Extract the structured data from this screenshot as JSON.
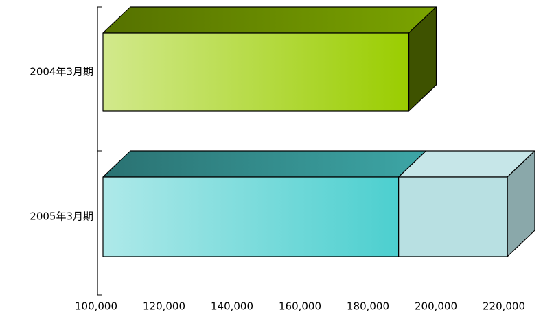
{
  "chart_data": {
    "type": "bar3d_horizontal_stacked",
    "categories": [
      "2004年3月期",
      "2005年3月期"
    ],
    "series": [
      {
        "colors": [
          "#9acd00",
          "#4ccfcf"
        ],
        "values": [
          190000,
          187000
        ]
      },
      {
        "colors": [
          "#b8e0e2",
          "#b8e0e2"
        ],
        "values": [
          null,
          32000
        ]
      }
    ],
    "xlim": [
      100000,
      220000
    ],
    "xticks": [
      {
        "value": 100000,
        "label": "100,000"
      },
      {
        "value": 120000,
        "label": "120,000"
      },
      {
        "value": 140000,
        "label": "140,000"
      },
      {
        "value": 160000,
        "label": "160,000"
      },
      {
        "value": 180000,
        "label": "180,000"
      },
      {
        "value": 200000,
        "label": "200,000"
      },
      {
        "value": 220000,
        "label": "220,000"
      }
    ]
  }
}
